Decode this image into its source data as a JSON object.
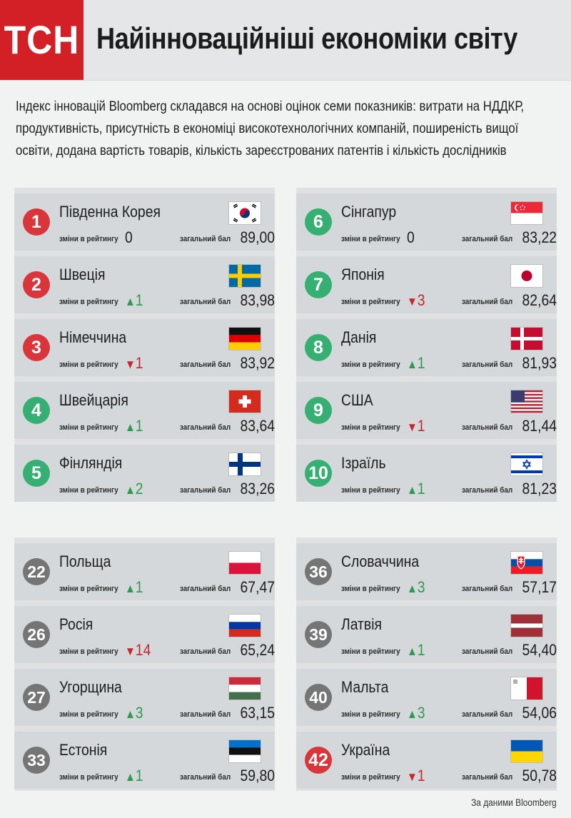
{
  "header": {
    "logo_text": "ТСН",
    "title": "Найінноваційніші економіки світу"
  },
  "intro": "Індекс інновацій Bloomberg складався на основі оцінок семи показників: витрати на НДДКР, продуктивність, присутність в економіці високотехнологічних компаній, поширеність вищої освіти, додана вартість товарів, кількість зареєстрованих патентів і кількість дослідників",
  "labels": {
    "change": "зміни в рейтингу",
    "score": "загальний бал"
  },
  "colors": {
    "logo_red": "#d31f26",
    "badge_red": "#d9353a",
    "badge_green": "#35b072",
    "badge_gray": "#757575",
    "arrow_up": "#2f9a4f",
    "arrow_down": "#c8262c"
  },
  "countries": [
    {
      "rank": "1",
      "name": "Південна Корея",
      "dir": "none",
      "change": "0",
      "score": "89,00",
      "flag": "kr",
      "badge": "red"
    },
    {
      "rank": "2",
      "name": "Швеція",
      "dir": "up",
      "change": "1",
      "score": "83,98",
      "flag": "se",
      "badge": "red"
    },
    {
      "rank": "3",
      "name": "Німеччина",
      "dir": "down",
      "change": "1",
      "score": "83,92",
      "flag": "de",
      "badge": "red"
    },
    {
      "rank": "4",
      "name": "Швейцарія",
      "dir": "up",
      "change": "1",
      "score": "83,64",
      "flag": "ch",
      "badge": "green"
    },
    {
      "rank": "5",
      "name": "Фінляндія",
      "dir": "up",
      "change": "2",
      "score": "83,26",
      "flag": "fi",
      "badge": "green"
    },
    {
      "rank": "6",
      "name": "Сінгапур",
      "dir": "none",
      "change": "0",
      "score": "83,22",
      "flag": "sg",
      "badge": "green"
    },
    {
      "rank": "7",
      "name": "Японія",
      "dir": "down",
      "change": "3",
      "score": "82,64",
      "flag": "jp",
      "badge": "green"
    },
    {
      "rank": "8",
      "name": "Данія",
      "dir": "up",
      "change": "1",
      "score": "81,93",
      "flag": "dk",
      "badge": "green"
    },
    {
      "rank": "9",
      "name": "США",
      "dir": "down",
      "change": "1",
      "score": "81,44",
      "flag": "us",
      "badge": "green"
    },
    {
      "rank": "10",
      "name": "Ізраїль",
      "dir": "up",
      "change": "1",
      "score": "81,23",
      "flag": "il",
      "badge": "green"
    },
    {
      "rank": "22",
      "name": "Польща",
      "dir": "up",
      "change": "1",
      "score": "67,47",
      "flag": "pl",
      "badge": "gray"
    },
    {
      "rank": "26",
      "name": "Росія",
      "dir": "down",
      "change": "14",
      "score": "65,24",
      "flag": "ru",
      "badge": "gray"
    },
    {
      "rank": "27",
      "name": "Угорщина",
      "dir": "up",
      "change": "3",
      "score": "63,15",
      "flag": "hu",
      "badge": "gray"
    },
    {
      "rank": "33",
      "name": "Естонія",
      "dir": "up",
      "change": "1",
      "score": "59,80",
      "flag": "ee",
      "badge": "gray"
    },
    {
      "rank": "36",
      "name": "Словаччина",
      "dir": "up",
      "change": "3",
      "score": "57,17",
      "flag": "sk",
      "badge": "gray"
    },
    {
      "rank": "39",
      "name": "Латвія",
      "dir": "up",
      "change": "1",
      "score": "54,40",
      "flag": "lv",
      "badge": "gray"
    },
    {
      "rank": "40",
      "name": "Мальта",
      "dir": "up",
      "change": "3",
      "score": "54,06",
      "flag": "mt",
      "badge": "gray"
    },
    {
      "rank": "42",
      "name": "Україна",
      "dir": "down",
      "change": "1",
      "score": "50,78",
      "flag": "ua",
      "badge": "red"
    }
  ],
  "source": "За даними Bloomberg"
}
